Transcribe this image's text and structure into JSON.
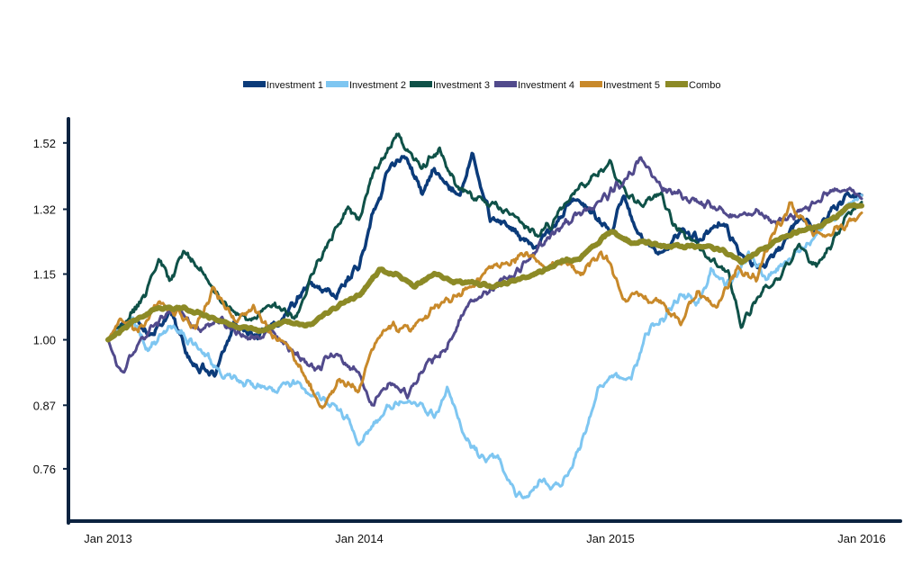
{
  "chart_data": {
    "type": "line",
    "title": "",
    "xlabel": "",
    "ylabel": "",
    "yscale": "log",
    "ylim": [
      0.68,
      1.6
    ],
    "xlim": [
      2013.0,
      2016.0
    ],
    "yticks": [
      0.76,
      0.87,
      1.0,
      1.15,
      1.32,
      1.52
    ],
    "ytick_labels": [
      "0.76",
      "0.87",
      "1.00",
      "1.15",
      "1.32",
      "1.52"
    ],
    "xticks": [
      2013.0,
      2014.0,
      2015.0,
      2016.0
    ],
    "xtick_labels": [
      "Jan 2013",
      "Jan 2014",
      "Jan 2015",
      "Jan 2016"
    ],
    "legend_position": "top-center",
    "series": [
      {
        "name": "Investment 1",
        "color": "#0b3b7a",
        "stroke": 3.5,
        "points": [
          [
            2013.0,
            1.0
          ],
          [
            2013.08,
            1.04
          ],
          [
            2013.17,
            1.01
          ],
          [
            2013.25,
            1.06
          ],
          [
            2013.33,
            0.95
          ],
          [
            2013.42,
            0.93
          ],
          [
            2013.5,
            1.03
          ],
          [
            2013.6,
            1.01
          ],
          [
            2013.7,
            1.05
          ],
          [
            2013.8,
            1.13
          ],
          [
            2013.9,
            1.1
          ],
          [
            2014.0,
            1.17
          ],
          [
            2014.05,
            1.3
          ],
          [
            2014.12,
            1.44
          ],
          [
            2014.18,
            1.48
          ],
          [
            2014.25,
            1.37
          ],
          [
            2014.3,
            1.44
          ],
          [
            2014.4,
            1.35
          ],
          [
            2014.45,
            1.49
          ],
          [
            2014.52,
            1.3
          ],
          [
            2014.6,
            1.27
          ],
          [
            2014.7,
            1.22
          ],
          [
            2014.78,
            1.28
          ],
          [
            2014.85,
            1.35
          ],
          [
            2014.92,
            1.32
          ],
          [
            2015.0,
            1.25
          ],
          [
            2015.05,
            1.36
          ],
          [
            2015.12,
            1.24
          ],
          [
            2015.2,
            1.2
          ],
          [
            2015.28,
            1.26
          ],
          [
            2015.35,
            1.24
          ],
          [
            2015.45,
            1.28
          ],
          [
            2015.52,
            1.2
          ],
          [
            2015.6,
            1.16
          ],
          [
            2015.68,
            1.22
          ],
          [
            2015.75,
            1.3
          ],
          [
            2015.82,
            1.26
          ],
          [
            2015.9,
            1.33
          ],
          [
            2015.95,
            1.36
          ],
          [
            2016.0,
            1.36
          ]
        ]
      },
      {
        "name": "Investment 2",
        "color": "#7ec6f1",
        "stroke": 3.0,
        "points": [
          [
            2013.0,
            1.0
          ],
          [
            2013.1,
            1.05
          ],
          [
            2013.15,
            0.98
          ],
          [
            2013.25,
            1.03
          ],
          [
            2013.35,
            0.99
          ],
          [
            2013.45,
            0.93
          ],
          [
            2013.55,
            0.91
          ],
          [
            2013.65,
            0.9
          ],
          [
            2013.75,
            0.91
          ],
          [
            2013.85,
            0.88
          ],
          [
            2013.95,
            0.85
          ],
          [
            2014.0,
            0.8
          ],
          [
            2014.1,
            0.86
          ],
          [
            2014.2,
            0.88
          ],
          [
            2014.3,
            0.85
          ],
          [
            2014.35,
            0.9
          ],
          [
            2014.42,
            0.82
          ],
          [
            2014.48,
            0.78
          ],
          [
            2014.55,
            0.78
          ],
          [
            2014.6,
            0.74
          ],
          [
            2014.65,
            0.71
          ],
          [
            2014.72,
            0.74
          ],
          [
            2014.8,
            0.73
          ],
          [
            2014.85,
            0.77
          ],
          [
            2014.9,
            0.82
          ],
          [
            2014.95,
            0.9
          ],
          [
            2015.02,
            0.93
          ],
          [
            2015.08,
            0.92
          ],
          [
            2015.15,
            1.02
          ],
          [
            2015.22,
            1.05
          ],
          [
            2015.28,
            1.1
          ],
          [
            2015.35,
            1.08
          ],
          [
            2015.4,
            1.16
          ],
          [
            2015.48,
            1.12
          ],
          [
            2015.55,
            1.2
          ],
          [
            2015.62,
            1.14
          ],
          [
            2015.7,
            1.18
          ],
          [
            2015.78,
            1.22
          ],
          [
            2015.85,
            1.28
          ],
          [
            2015.92,
            1.31
          ],
          [
            2016.0,
            1.36
          ]
        ]
      },
      {
        "name": "Investment 3",
        "color": "#0f5148",
        "stroke": 3.0,
        "points": [
          [
            2013.0,
            1.0
          ],
          [
            2013.08,
            1.05
          ],
          [
            2013.15,
            1.1
          ],
          [
            2013.2,
            1.19
          ],
          [
            2013.25,
            1.13
          ],
          [
            2013.3,
            1.21
          ],
          [
            2013.38,
            1.15
          ],
          [
            2013.45,
            1.09
          ],
          [
            2013.55,
            1.04
          ],
          [
            2013.65,
            1.08
          ],
          [
            2013.75,
            1.05
          ],
          [
            2013.82,
            1.16
          ],
          [
            2013.9,
            1.26
          ],
          [
            2013.95,
            1.32
          ],
          [
            2014.0,
            1.29
          ],
          [
            2014.05,
            1.42
          ],
          [
            2014.12,
            1.51
          ],
          [
            2014.15,
            1.56
          ],
          [
            2014.2,
            1.49
          ],
          [
            2014.25,
            1.44
          ],
          [
            2014.32,
            1.5
          ],
          [
            2014.38,
            1.4
          ],
          [
            2014.45,
            1.35
          ],
          [
            2014.55,
            1.33
          ],
          [
            2014.65,
            1.28
          ],
          [
            2014.72,
            1.25
          ],
          [
            2014.78,
            1.29
          ],
          [
            2014.85,
            1.37
          ],
          [
            2014.92,
            1.41
          ],
          [
            2015.0,
            1.45
          ],
          [
            2015.05,
            1.38
          ],
          [
            2015.12,
            1.33
          ],
          [
            2015.2,
            1.37
          ],
          [
            2015.25,
            1.28
          ],
          [
            2015.32,
            1.24
          ],
          [
            2015.4,
            1.19
          ],
          [
            2015.47,
            1.15
          ],
          [
            2015.52,
            1.03
          ],
          [
            2015.6,
            1.11
          ],
          [
            2015.68,
            1.15
          ],
          [
            2015.75,
            1.22
          ],
          [
            2015.82,
            1.17
          ],
          [
            2015.9,
            1.25
          ],
          [
            2015.95,
            1.31
          ],
          [
            2016.0,
            1.34
          ]
        ]
      },
      {
        "name": "Investment 4",
        "color": "#514a8c",
        "stroke": 3.0,
        "points": [
          [
            2013.0,
            1.0
          ],
          [
            2013.05,
            0.93
          ],
          [
            2013.12,
            0.99
          ],
          [
            2013.2,
            1.04
          ],
          [
            2013.28,
            1.07
          ],
          [
            2013.35,
            1.02
          ],
          [
            2013.45,
            1.04
          ],
          [
            2013.55,
            1.0
          ],
          [
            2013.65,
            1.02
          ],
          [
            2013.75,
            0.97
          ],
          [
            2013.82,
            0.94
          ],
          [
            2013.9,
            0.97
          ],
          [
            2014.0,
            0.93
          ],
          [
            2014.05,
            0.87
          ],
          [
            2014.12,
            0.91
          ],
          [
            2014.2,
            0.89
          ],
          [
            2014.28,
            0.96
          ],
          [
            2014.35,
            0.98
          ],
          [
            2014.42,
            1.07
          ],
          [
            2014.5,
            1.1
          ],
          [
            2014.55,
            1.13
          ],
          [
            2014.62,
            1.15
          ],
          [
            2014.7,
            1.21
          ],
          [
            2014.78,
            1.26
          ],
          [
            2014.85,
            1.3
          ],
          [
            2014.92,
            1.32
          ],
          [
            2015.0,
            1.37
          ],
          [
            2015.08,
            1.42
          ],
          [
            2015.12,
            1.48
          ],
          [
            2015.2,
            1.38
          ],
          [
            2015.28,
            1.36
          ],
          [
            2015.35,
            1.34
          ],
          [
            2015.42,
            1.32
          ],
          [
            2015.5,
            1.3
          ],
          [
            2015.58,
            1.32
          ],
          [
            2015.65,
            1.28
          ],
          [
            2015.72,
            1.3
          ],
          [
            2015.8,
            1.33
          ],
          [
            2015.88,
            1.37
          ],
          [
            2015.95,
            1.38
          ],
          [
            2016.0,
            1.35
          ]
        ]
      },
      {
        "name": "Investment 5",
        "color": "#c8892a",
        "stroke": 3.0,
        "points": [
          [
            2013.0,
            1.0
          ],
          [
            2013.06,
            1.05
          ],
          [
            2013.12,
            1.02
          ],
          [
            2013.2,
            1.08
          ],
          [
            2013.28,
            1.06
          ],
          [
            2013.35,
            1.02
          ],
          [
            2013.42,
            1.12
          ],
          [
            2013.5,
            1.04
          ],
          [
            2013.58,
            1.07
          ],
          [
            2013.65,
            1.01
          ],
          [
            2013.72,
            0.98
          ],
          [
            2013.8,
            0.91
          ],
          [
            2013.85,
            0.86
          ],
          [
            2013.92,
            0.92
          ],
          [
            2014.0,
            0.9
          ],
          [
            2014.05,
            0.98
          ],
          [
            2014.12,
            1.03
          ],
          [
            2014.2,
            1.02
          ],
          [
            2014.3,
            1.07
          ],
          [
            2014.38,
            1.09
          ],
          [
            2014.45,
            1.12
          ],
          [
            2014.52,
            1.16
          ],
          [
            2014.6,
            1.18
          ],
          [
            2014.68,
            1.2
          ],
          [
            2014.75,
            1.17
          ],
          [
            2014.82,
            1.19
          ],
          [
            2014.88,
            1.15
          ],
          [
            2014.95,
            1.2
          ],
          [
            2015.0,
            1.18
          ],
          [
            2015.05,
            1.09
          ],
          [
            2015.12,
            1.1
          ],
          [
            2015.2,
            1.08
          ],
          [
            2015.28,
            1.04
          ],
          [
            2015.35,
            1.11
          ],
          [
            2015.42,
            1.07
          ],
          [
            2015.5,
            1.16
          ],
          [
            2015.58,
            1.14
          ],
          [
            2015.65,
            1.26
          ],
          [
            2015.72,
            1.33
          ],
          [
            2015.78,
            1.27
          ],
          [
            2015.85,
            1.25
          ],
          [
            2015.92,
            1.27
          ],
          [
            2016.0,
            1.31
          ]
        ]
      },
      {
        "name": "Combo",
        "color": "#8c8a26",
        "stroke": 6.0,
        "points": [
          [
            2013.0,
            1.0
          ],
          [
            2013.1,
            1.04
          ],
          [
            2013.2,
            1.07
          ],
          [
            2013.3,
            1.07
          ],
          [
            2013.4,
            1.05
          ],
          [
            2013.5,
            1.03
          ],
          [
            2013.6,
            1.02
          ],
          [
            2013.7,
            1.04
          ],
          [
            2013.8,
            1.03
          ],
          [
            2013.9,
            1.07
          ],
          [
            2014.0,
            1.1
          ],
          [
            2014.08,
            1.16
          ],
          [
            2014.15,
            1.15
          ],
          [
            2014.22,
            1.12
          ],
          [
            2014.3,
            1.15
          ],
          [
            2014.38,
            1.13
          ],
          [
            2014.45,
            1.13
          ],
          [
            2014.52,
            1.12
          ],
          [
            2014.6,
            1.13
          ],
          [
            2014.7,
            1.15
          ],
          [
            2014.8,
            1.18
          ],
          [
            2014.88,
            1.19
          ],
          [
            2014.95,
            1.23
          ],
          [
            2015.0,
            1.26
          ],
          [
            2015.08,
            1.23
          ],
          [
            2015.15,
            1.23
          ],
          [
            2015.22,
            1.22
          ],
          [
            2015.3,
            1.22
          ],
          [
            2015.38,
            1.22
          ],
          [
            2015.45,
            1.21
          ],
          [
            2015.52,
            1.18
          ],
          [
            2015.6,
            1.21
          ],
          [
            2015.68,
            1.24
          ],
          [
            2015.75,
            1.26
          ],
          [
            2015.82,
            1.27
          ],
          [
            2015.9,
            1.3
          ],
          [
            2015.95,
            1.33
          ],
          [
            2016.0,
            1.33
          ]
        ]
      }
    ]
  }
}
